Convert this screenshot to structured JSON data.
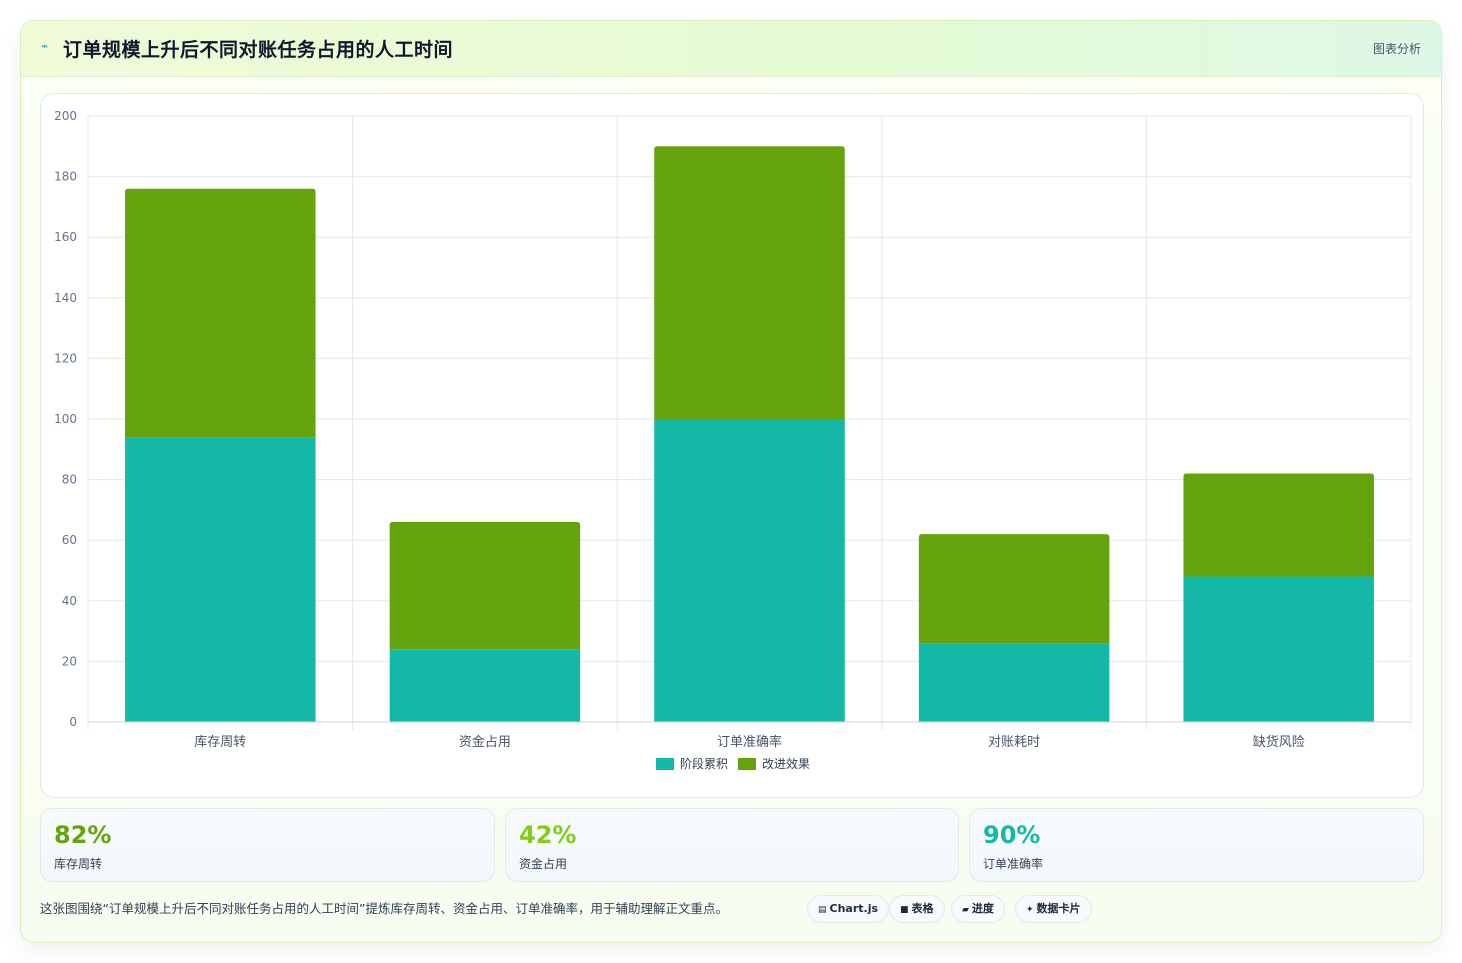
{
  "header": {
    "icon": "chart-line-icon",
    "title": "订单规模上升后不同对账任务占用的人工时间",
    "tag": "图表分析"
  },
  "chart_data": {
    "type": "bar",
    "stacked": true,
    "categories": [
      "库存周转",
      "资金占用",
      "订单准确率",
      "对账耗时",
      "缺货风险"
    ],
    "series": [
      {
        "name": "阶段累积",
        "color": "#14b8a6",
        "values": [
          94,
          24,
          100,
          26,
          48
        ]
      },
      {
        "name": "改进效果",
        "color": "#65a30d",
        "values": [
          82,
          42,
          90,
          36,
          34
        ]
      }
    ],
    "ylim": [
      0,
      200
    ],
    "yticks": [
      0,
      20,
      40,
      60,
      80,
      100,
      120,
      140,
      160,
      180,
      200
    ],
    "grid": true,
    "legend_position": "bottom"
  },
  "stats": [
    {
      "value": "82%",
      "label": "库存周转",
      "color": "#65a30d"
    },
    {
      "value": "42%",
      "label": "资金占用",
      "color": "#84cc16"
    },
    {
      "value": "90%",
      "label": "订单准确率",
      "color": "#14b8a6"
    }
  ],
  "caption": "这张图围绕“订单规模上升后不同对账任务占用的人工时间”提炼库存周转、资金占用、订单准确率，用于辅助理解正文重点。",
  "pills": [
    {
      "icon": "table-icon",
      "glyph": "▤",
      "label": "Chart.js"
    },
    {
      "icon": "grid-icon",
      "glyph": "■",
      "label": "表格"
    },
    {
      "icon": "progress-icon",
      "glyph": "▰",
      "label": "进度"
    },
    {
      "icon": "sparkle-icon",
      "glyph": "✦",
      "label": "数据卡片"
    }
  ]
}
